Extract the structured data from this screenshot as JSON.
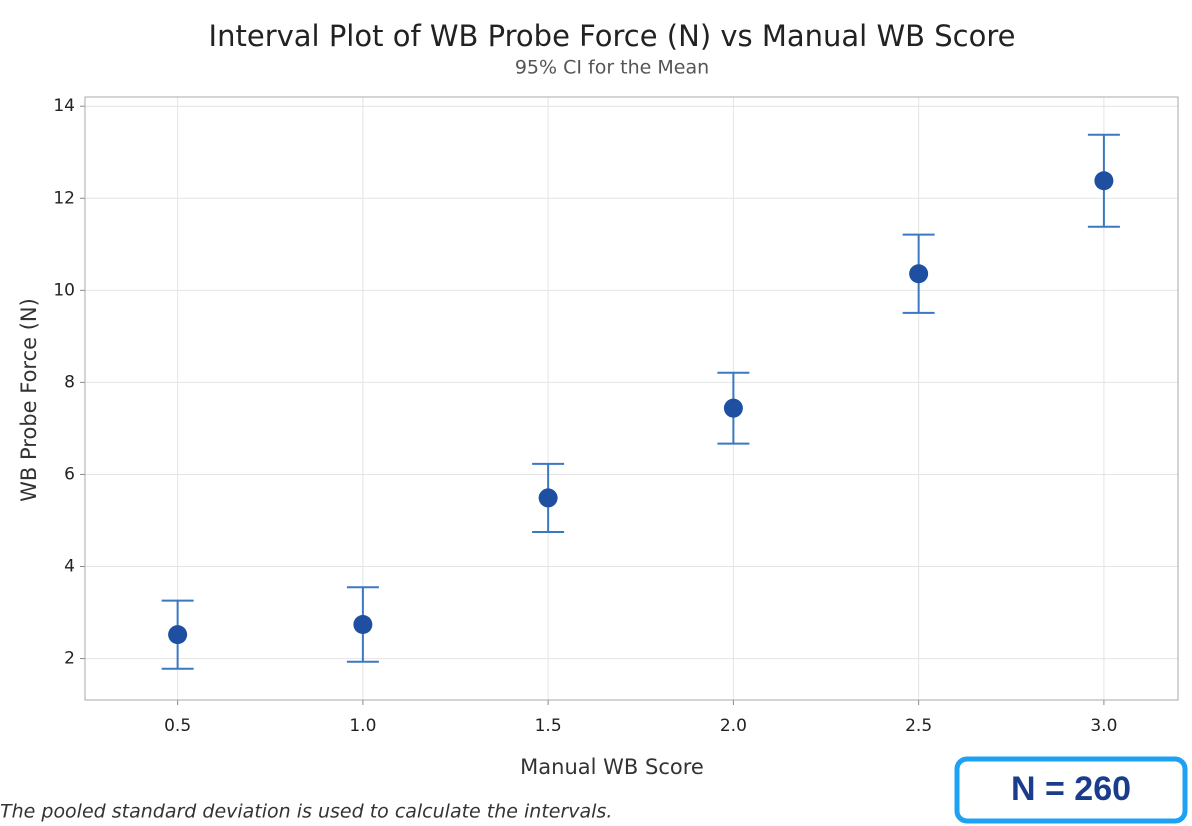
{
  "chart_data": {
    "type": "interval",
    "title": "Interval Plot of WB Probe Force (N) vs Manual WB Score",
    "subtitle": "95% CI for the Mean",
    "x_label": "Manual WB Score",
    "y_label": "WB Probe Force (N)",
    "footnote": "The pooled standard deviation is used to calculate the intervals.",
    "annotation": "N = 260",
    "x": [
      0.5,
      1.0,
      1.5,
      2.0,
      2.5,
      3.0
    ],
    "series": [
      {
        "color": "#1f4fa0",
        "values": [
          2.52,
          2.74,
          5.49,
          7.44,
          10.36,
          12.38
        ],
        "errors": [
          0.74,
          0.81,
          0.74,
          0.77,
          0.85,
          1.0
        ]
      }
    ],
    "xlim": [
      0.25,
      3.2
    ],
    "xticks": [
      0.5,
      {
        "value": 1,
        "label": "1.0"
      },
      1.5,
      {
        "value": 2,
        "label": "2.0"
      },
      2.5,
      {
        "value": 3,
        "label": "3.0"
      }
    ],
    "ylim": [
      1.1,
      14.2
    ],
    "yticks": [
      2,
      4,
      6,
      8,
      10,
      12,
      14
    ],
    "grid": true
  }
}
